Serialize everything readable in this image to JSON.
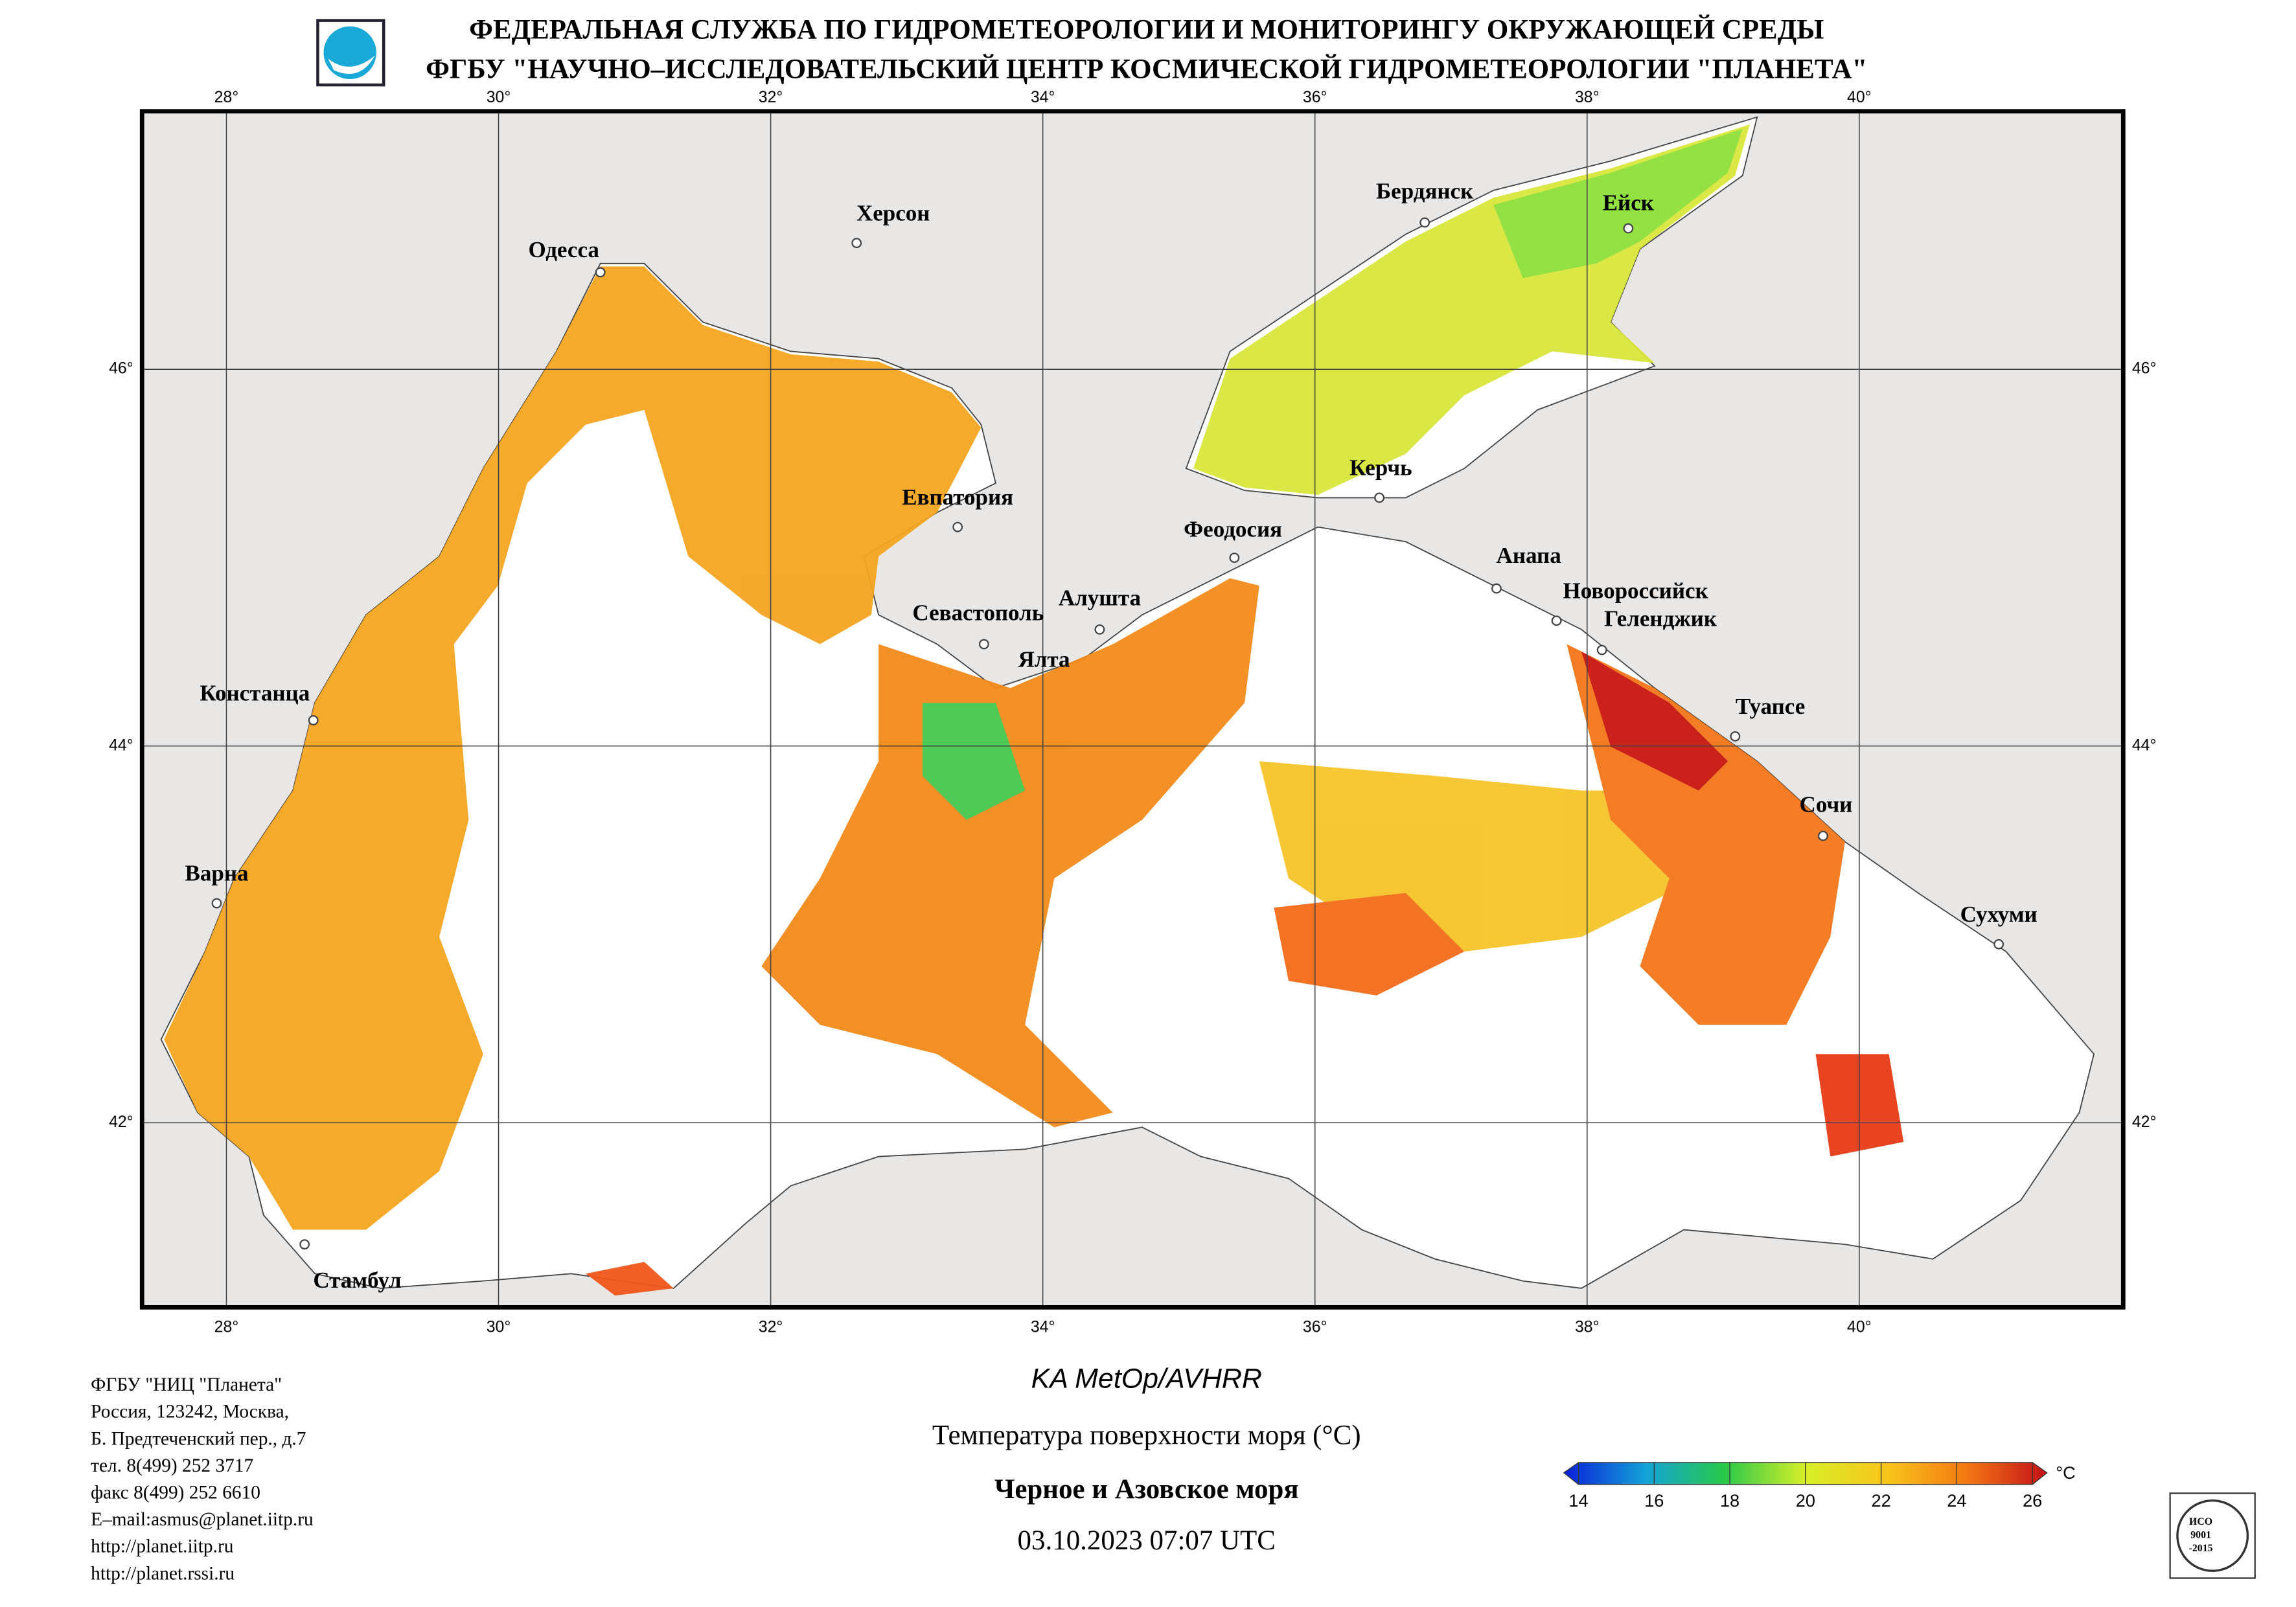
{
  "header": {
    "agency": "ФЕДЕРАЛЬНАЯ СЛУЖБА ПО ГИДРОМЕТЕОРОЛОГИИ И МОНИТОРИНГУ ОКРУЖАЮЩЕЙ СРЕДЫ",
    "center": "ФГБУ \"НАУЧНО–ИССЛЕДОВАТЕЛЬСКИЙ ЦЕНТР КОСМИЧЕСКОЙ ГИДРОМЕТЕОРОЛОГИИ \"ПЛАНЕТА\""
  },
  "map": {
    "xlim": [
      27.38,
      41.94
    ],
    "ylim": [
      41.02,
      47.37
    ],
    "xticks": [
      {
        "value": 28,
        "label": "28°"
      },
      {
        "value": 30,
        "label": "30°"
      },
      {
        "value": 32,
        "label": "32°"
      },
      {
        "value": 34,
        "label": "34°"
      },
      {
        "value": 36,
        "label": "36°"
      },
      {
        "value": 38,
        "label": "38°"
      },
      {
        "value": 40,
        "label": "40°"
      }
    ],
    "yticks": [
      {
        "value": 42,
        "label": "42°"
      },
      {
        "value": 44,
        "label": "44°"
      },
      {
        "value": 46,
        "label": "46°"
      }
    ]
  },
  "cities": [
    "Одесса",
    "Херсон",
    "Бердянск",
    "Ейск",
    "Керчь",
    "Евпатория",
    "Феодосия",
    "Анапа",
    "Новороссийск",
    "Геленджик",
    "Алушта",
    "Севастополь",
    "Ялта",
    "Туапсе",
    "Сочи",
    "Сухуми",
    "Констанца",
    "Варна",
    "Стамбул"
  ],
  "caption": {
    "satellite": "KA MetOp/AVHRR",
    "parameter": "Температура поверхности моря (°C)",
    "region": "Черное и Азовское моря",
    "datetime": "03.10.2023 07:07 UTC"
  },
  "contacts": [
    "ФГБУ \"НИЦ \"Планета\"",
    "Россия, 123242, Москва,",
    "Б. Предтеченский пер., д.7",
    "тел. 8(499) 252 3717",
    "факс 8(499) 252 6610",
    "E–mail:asmus@planet.iitp.ru",
    "http://planet.iitp.ru",
    "http://planet.rssi.ru"
  ],
  "colorbar": {
    "ticks": [
      14,
      16,
      18,
      20,
      22,
      24,
      26
    ],
    "unit": "°C"
  },
  "certification": [
    "ИСО",
    "9001",
    "-2015"
  ]
}
